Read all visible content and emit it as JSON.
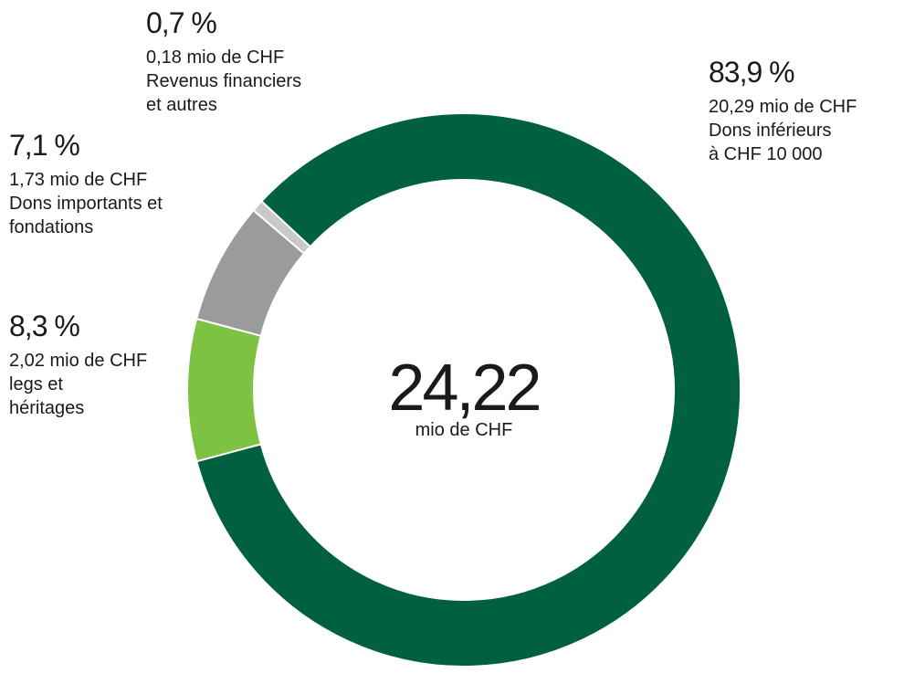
{
  "chart_data": {
    "type": "donut",
    "center_value": "24,22",
    "center_label": "mio de CHF",
    "categories": [
      "Dons inférieurs\nà CHF 10 000",
      "legs et\nhéritages",
      "Dons importants et\nfondations",
      "Revenus financiers\net autres"
    ],
    "values": [
      83.9,
      8.3,
      7.1,
      0.7
    ],
    "value_labels": [
      "83,9 %",
      "8,3 %",
      "7,1 %",
      "0,7 %"
    ],
    "amount_labels": [
      "20,29 mio de CHF",
      "2,02 mio de CHF",
      "1,73 mio de CHF",
      "0,18 mio de CHF"
    ],
    "colors": [
      "#006040",
      "#7dc242",
      "#9a9b9d",
      "#c9c9ca"
    ]
  }
}
